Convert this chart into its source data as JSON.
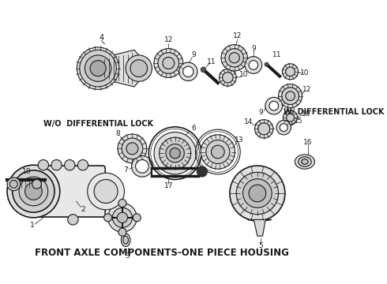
{
  "title": "FRONT AXLE COMPONENTS-ONE PIECE HOUSING",
  "title_fontsize": 8.5,
  "title_fontweight": "bold",
  "bg_color": "#ffffff",
  "line_color": "#1a1a1a",
  "figsize": [
    4.9,
    3.6
  ],
  "dpi": 100,
  "wo_lock_label": "W/O  DIFFERENTIAL LOCK",
  "w_lock_label": "W/ DIFFERENTIAL LOCK",
  "label_fontsize": 7,
  "label_fontweight": "bold"
}
